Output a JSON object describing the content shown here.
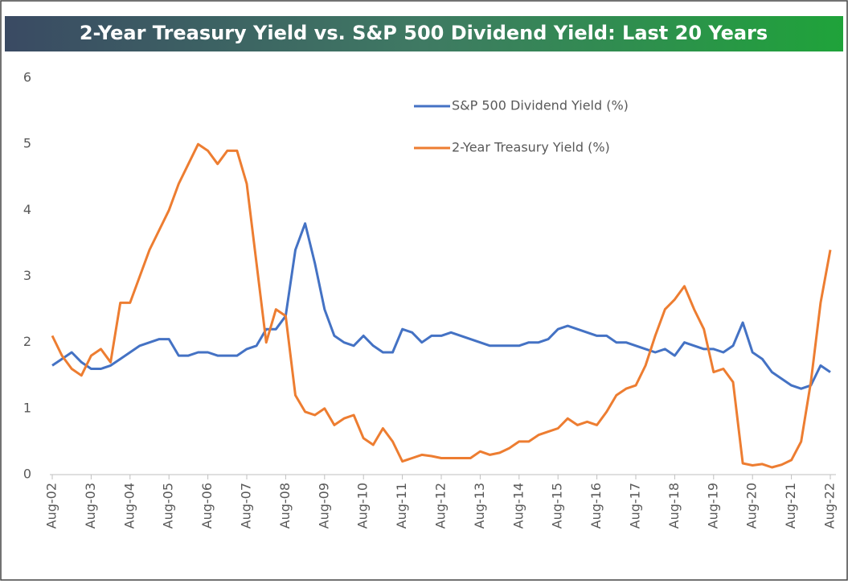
{
  "chart_data": {
    "type": "line",
    "title": "2-Year Treasury Yield vs. S&P 500 Dividend Yield: Last 20 Years",
    "x": [
      "2002-08",
      "2002-11",
      "2003-02",
      "2003-05",
      "2003-08",
      "2003-11",
      "2004-02",
      "2004-05",
      "2004-08",
      "2004-11",
      "2005-02",
      "2005-05",
      "2005-08",
      "2005-11",
      "2006-02",
      "2006-05",
      "2006-08",
      "2006-11",
      "2007-02",
      "2007-05",
      "2007-08",
      "2007-11",
      "2008-02",
      "2008-05",
      "2008-08",
      "2008-11",
      "2009-02",
      "2009-05",
      "2009-08",
      "2009-11",
      "2010-02",
      "2010-05",
      "2010-08",
      "2010-11",
      "2011-02",
      "2011-05",
      "2011-08",
      "2011-11",
      "2012-02",
      "2012-05",
      "2012-08",
      "2012-11",
      "2013-02",
      "2013-05",
      "2013-08",
      "2013-11",
      "2014-02",
      "2014-05",
      "2014-08",
      "2014-11",
      "2015-02",
      "2015-05",
      "2015-08",
      "2015-11",
      "2016-02",
      "2016-05",
      "2016-08",
      "2016-11",
      "2017-02",
      "2017-05",
      "2017-08",
      "2017-11",
      "2018-02",
      "2018-05",
      "2018-08",
      "2018-11",
      "2019-02",
      "2019-05",
      "2019-08",
      "2019-11",
      "2020-02",
      "2020-05",
      "2020-08",
      "2020-11",
      "2021-02",
      "2021-05",
      "2021-08",
      "2021-11",
      "2022-02",
      "2022-05",
      "2022-08"
    ],
    "series": [
      {
        "name": "S&P 500 Dividend Yield (%)",
        "color": "#4472c4",
        "values": [
          1.65,
          1.75,
          1.85,
          1.7,
          1.6,
          1.6,
          1.65,
          1.75,
          1.85,
          1.95,
          2.0,
          2.05,
          2.05,
          1.8,
          1.8,
          1.85,
          1.85,
          1.8,
          1.8,
          1.8,
          1.9,
          1.95,
          2.2,
          2.2,
          2.4,
          3.4,
          3.8,
          3.2,
          2.5,
          2.1,
          2.0,
          1.95,
          2.1,
          1.95,
          1.85,
          1.85,
          2.2,
          2.15,
          2.0,
          2.1,
          2.1,
          2.15,
          2.1,
          2.05,
          2.0,
          1.95,
          1.95,
          1.95,
          1.95,
          2.0,
          2.0,
          2.05,
          2.2,
          2.25,
          2.2,
          2.15,
          2.1,
          2.1,
          2.0,
          2.0,
          1.95,
          1.9,
          1.85,
          1.9,
          1.8,
          2.0,
          1.95,
          1.9,
          1.9,
          1.85,
          1.95,
          2.3,
          1.85,
          1.75,
          1.55,
          1.45,
          1.35,
          1.3,
          1.35,
          1.65,
          1.55
        ]
      },
      {
        "name": "2-Year Treasury Yield (%)",
        "color": "#ed7d31",
        "values": [
          2.1,
          1.8,
          1.6,
          1.5,
          1.8,
          1.9,
          1.7,
          2.6,
          2.6,
          3.0,
          3.4,
          3.7,
          4.0,
          4.4,
          4.7,
          5.0,
          4.9,
          4.7,
          4.9,
          4.9,
          4.4,
          3.2,
          2.0,
          2.5,
          2.4,
          1.2,
          0.95,
          0.9,
          1.0,
          0.75,
          0.85,
          0.9,
          0.55,
          0.45,
          0.7,
          0.5,
          0.2,
          0.25,
          0.3,
          0.28,
          0.25,
          0.25,
          0.25,
          0.25,
          0.35,
          0.3,
          0.33,
          0.4,
          0.5,
          0.5,
          0.6,
          0.65,
          0.7,
          0.85,
          0.75,
          0.8,
          0.75,
          0.95,
          1.2,
          1.3,
          1.35,
          1.65,
          2.1,
          2.5,
          2.65,
          2.85,
          2.5,
          2.2,
          1.55,
          1.6,
          1.4,
          0.17,
          0.14,
          0.16,
          0.11,
          0.15,
          0.22,
          0.5,
          1.4,
          2.6,
          3.4
        ]
      }
    ],
    "xlim": [
      "2002-08",
      "2022-09"
    ],
    "xticks": [
      {
        "value": "2002-08",
        "label": "Aug-02"
      },
      {
        "value": "2003-08",
        "label": "Aug-03"
      },
      {
        "value": "2004-08",
        "label": "Aug-04"
      },
      {
        "value": "2005-08",
        "label": "Aug-05"
      },
      {
        "value": "2006-08",
        "label": "Aug-06"
      },
      {
        "value": "2007-08",
        "label": "Aug-07"
      },
      {
        "value": "2008-08",
        "label": "Aug-08"
      },
      {
        "value": "2009-08",
        "label": "Aug-09"
      },
      {
        "value": "2010-08",
        "label": "Aug-10"
      },
      {
        "value": "2011-08",
        "label": "Aug-11"
      },
      {
        "value": "2012-08",
        "label": "Aug-12"
      },
      {
        "value": "2013-08",
        "label": "Aug-13"
      },
      {
        "value": "2014-08",
        "label": "Aug-14"
      },
      {
        "value": "2015-08",
        "label": "Aug-15"
      },
      {
        "value": "2016-08",
        "label": "Aug-16"
      },
      {
        "value": "2017-08",
        "label": "Aug-17"
      },
      {
        "value": "2018-08",
        "label": "Aug-18"
      },
      {
        "value": "2019-08",
        "label": "Aug-19"
      },
      {
        "value": "2020-08",
        "label": "Aug-20"
      },
      {
        "value": "2021-08",
        "label": "Aug-21"
      },
      {
        "value": "2022-08",
        "label": "Aug-22"
      }
    ],
    "ylim": [
      0,
      6
    ],
    "yticks": [
      0,
      1,
      2,
      3,
      4,
      5,
      6
    ]
  }
}
